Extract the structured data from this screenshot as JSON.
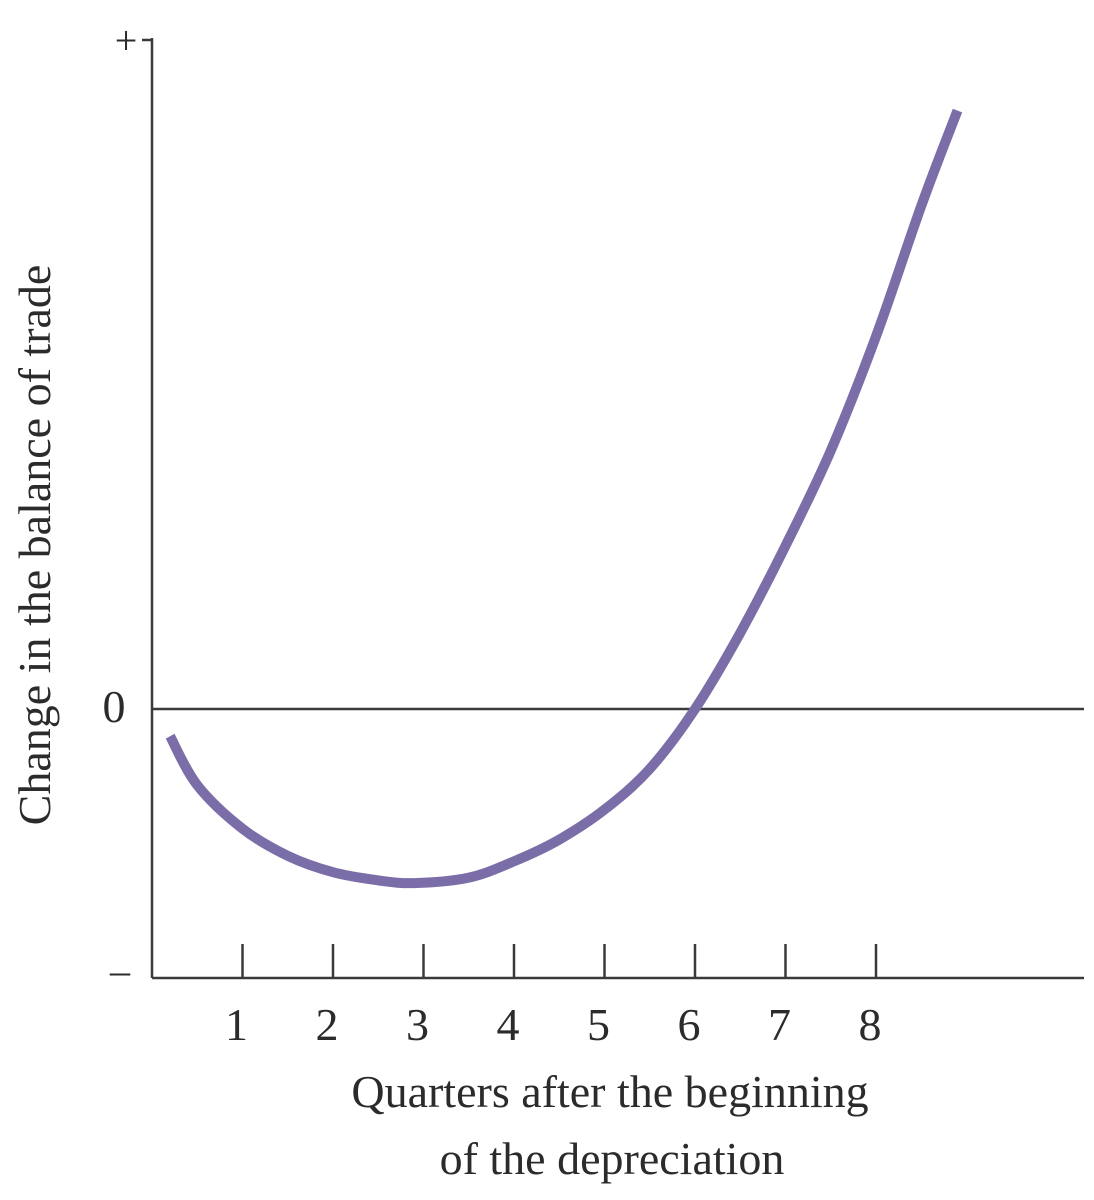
{
  "chart_data": {
    "type": "line",
    "title": "",
    "xlabel_lines": [
      "Quarters after the beginning",
      "of the depreciation"
    ],
    "ylabel": "Change in the balance of trade",
    "y_top_label": "+",
    "y_zero_label": "0",
    "y_bottom_label": "–",
    "x_ticks": [
      "1",
      "2",
      "3",
      "4",
      "5",
      "6",
      "7",
      "8"
    ],
    "xlim": [
      0,
      10.3
    ],
    "ylim": [
      -1.0,
      2.5
    ],
    "grid": false,
    "legend": "none",
    "colors": {
      "curve": "#7b6ea8",
      "axis": "#3a3a3a"
    },
    "series": [
      {
        "x": [
          0.2,
          0.5,
          1.0,
          1.5,
          2.0,
          2.5,
          2.9,
          3.5,
          4.0,
          4.5,
          5.0,
          5.5,
          6.0,
          6.5,
          7.0,
          7.5,
          8.0,
          8.5,
          8.9
        ],
        "y": [
          -0.1,
          -0.28,
          -0.44,
          -0.54,
          -0.6,
          -0.63,
          -0.64,
          -0.62,
          -0.56,
          -0.48,
          -0.37,
          -0.22,
          0.0,
          0.28,
          0.6,
          0.95,
          1.37,
          1.85,
          2.2
        ]
      }
    ]
  }
}
